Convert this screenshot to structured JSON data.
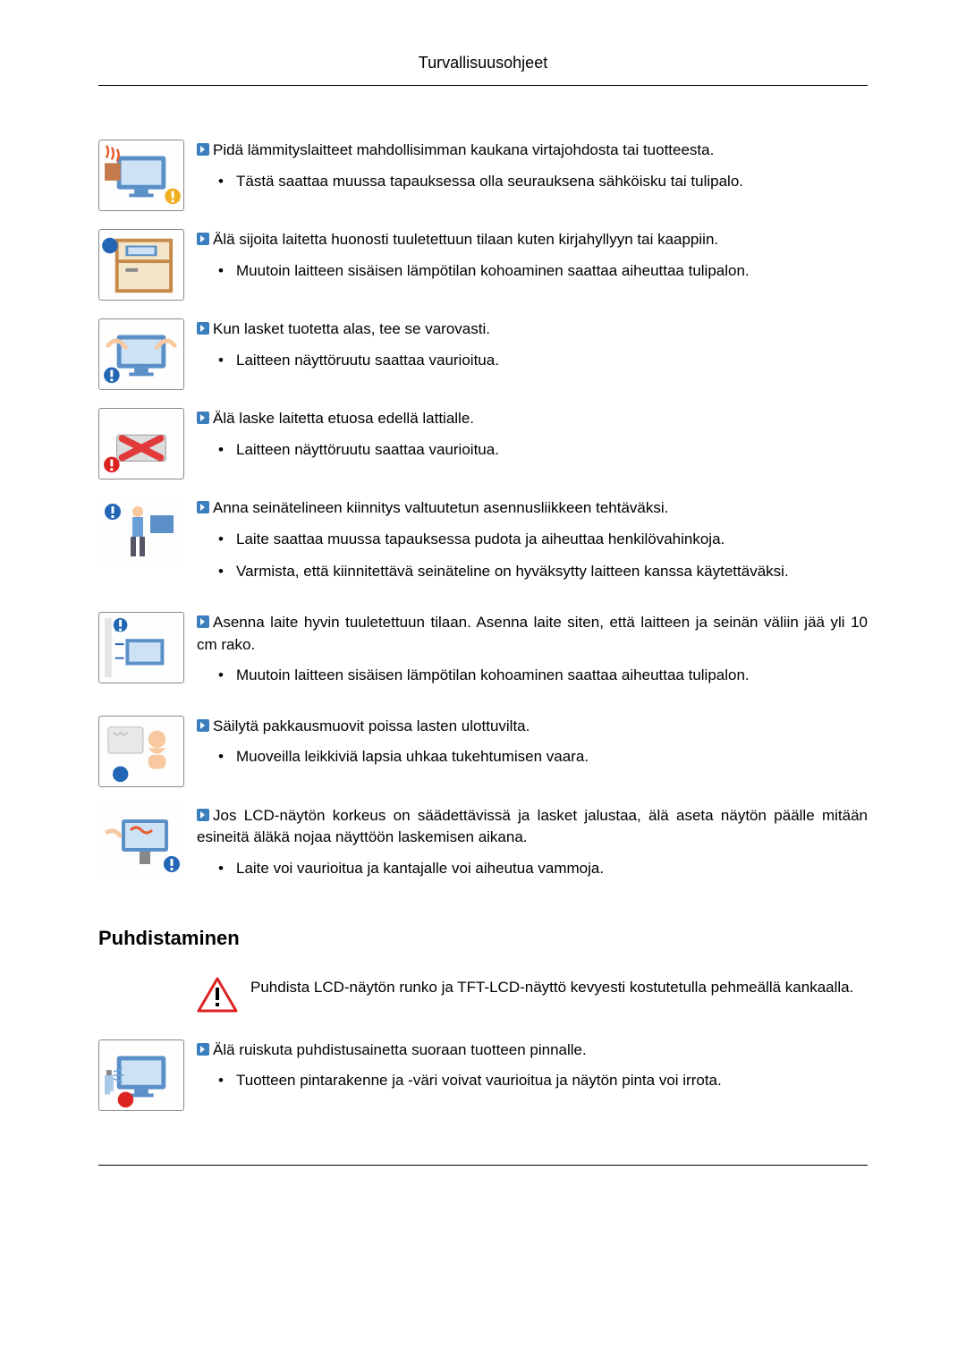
{
  "page_title": "Turvallisuusohjeet",
  "section_heading": "Puhdistaminen",
  "colors": {
    "bullet": "#3b7fbf",
    "text": "#000000",
    "border": "#000000",
    "monitor_frame": "#5a8fc7",
    "monitor_screen": "#cde3f5",
    "fire": "#e85a2e",
    "wood": "#c58a4a",
    "warn_red": "#d22",
    "warn_blue": "#2366b5",
    "x_red": "#e23a3a",
    "skin": "#f8c9a0"
  },
  "items": [
    {
      "picto": "heater",
      "heading": "Pidä lämmityslaitteet mahdollisimman kaukana virtajohdosta tai tuotteesta.",
      "details": [
        "Tästä saattaa muussa tapauksessa olla seurauksena sähköisku tai tulipalo."
      ]
    },
    {
      "picto": "cabinet",
      "heading": "Älä sijoita laitetta huonosti tuuletettuun tilaan kuten kirjahyllyyn tai kaappiin.",
      "details": [
        "Muutoin laitteen sisäisen lämpötilan kohoaminen saattaa aiheuttaa tulipalon."
      ]
    },
    {
      "picto": "putdown",
      "heading": "Kun lasket tuotetta alas, tee se varovasti.",
      "details": [
        "Laitteen näyttöruutu saattaa vaurioitua."
      ]
    },
    {
      "picto": "facedown",
      "heading": "Älä laske laitetta etuosa edellä lattialle.",
      "details": [
        "Laitteen näyttöruutu saattaa vaurioitua."
      ]
    },
    {
      "picto": "wallmount",
      "heading": "Anna seinätelineen kiinnitys valtuutetun asennusliikkeen tehtäväksi.",
      "details": [
        "Laite saattaa muussa tapauksessa pudota ja aiheuttaa henkilövahinkoja.",
        "Varmista, että kiinnitettävä seinäteline on hyväksytty laitteen kanssa käytettäväksi."
      ]
    },
    {
      "picto": "ventilate",
      "heading": "Asenna laite hyvin tuuletettuun tilaan. Asenna laite siten, että laitteen ja seinän väliin jää yli 10 cm rako.",
      "details": [
        "Muutoin laitteen sisäisen lämpötilan kohoaminen saattaa aiheuttaa tulipalon."
      ]
    },
    {
      "picto": "childbag",
      "heading": "Säilytä pakkausmuovit poissa lasten ulottuvilta.",
      "details": [
        "Muoveilla leikkiviä lapsia uhkaa tukehtumisen vaara."
      ]
    },
    {
      "picto": "adjustable",
      "heading": "Jos LCD-näytön korkeus on säädettävissä ja lasket jalustaa, älä aseta näytön päälle mitään esineitä äläkä nojaa näyttöön laskemisen aikana.",
      "details": [
        "Laite voi vaurioitua ja kantajalle voi aiheutua vammoja."
      ]
    }
  ],
  "warning_intro": "Puhdista LCD-näytön runko ja TFT-LCD-näyttö kevyesti kostutetulla pehmeällä kankaalla.",
  "cleaning_item": {
    "picto": "spray",
    "heading": "Älä ruiskuta puhdistusainetta suoraan tuotteen pinnalle.",
    "details": [
      "Tuotteen pintarakenne ja -väri voivat vaurioitua ja näytön pinta voi irrota."
    ]
  }
}
